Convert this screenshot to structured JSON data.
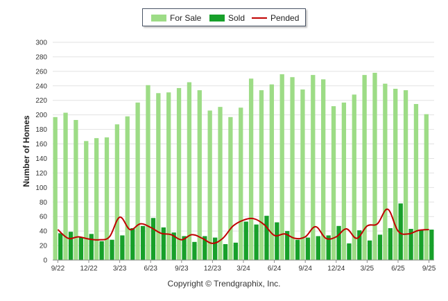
{
  "legend": {
    "for_sale": "For Sale",
    "sold": "Sold",
    "pended": "Pended"
  },
  "colors": {
    "for_sale": "#9ddc86",
    "sold": "#17a02a",
    "pended": "#c00000",
    "grid": "#e2e2e2",
    "axis": "#8a8a8a"
  },
  "copyright": "Copyright © Trendgraphix, Inc.",
  "chart_data": {
    "type": "bar",
    "title": "",
    "xlabel": "",
    "ylabel": "Number of Homes",
    "ylim": [
      0,
      300
    ],
    "yticks": [
      0,
      20,
      40,
      60,
      80,
      100,
      120,
      140,
      160,
      180,
      200,
      220,
      240,
      260,
      280,
      300
    ],
    "grid": true,
    "legend_position": "top-center",
    "categories": [
      "9/22",
      "10/22",
      "11/22",
      "12/22",
      "1/23",
      "2/23",
      "3/23",
      "4/23",
      "5/23",
      "6/23",
      "7/23",
      "8/23",
      "9/23",
      "10/23",
      "11/23",
      "12/23",
      "1/24",
      "2/24",
      "3/24",
      "4/24",
      "5/24",
      "6/24",
      "7/24",
      "8/24",
      "9/24",
      "10/24",
      "11/24",
      "12/24",
      "1/25",
      "2/25",
      "3/25",
      "4/25",
      "5/25",
      "6/25",
      "7/25",
      "8/25",
      "9/25"
    ],
    "x_tick_labels": [
      "9/22",
      "12/22",
      "3/23",
      "6/23",
      "9/23",
      "12/23",
      "3/24",
      "6/24",
      "9/24",
      "12/24",
      "3/25",
      "6/25",
      "9/25"
    ],
    "series": [
      {
        "name": "For Sale",
        "type": "bar",
        "values": [
          197,
          203,
          193,
          164,
          168,
          169,
          187,
          198,
          217,
          241,
          230,
          231,
          237,
          245,
          234,
          206,
          211,
          197,
          210,
          250,
          234,
          242,
          256,
          252,
          235,
          255,
          249,
          212,
          217,
          228,
          255,
          258,
          243,
          236,
          234,
          215,
          201
        ]
      },
      {
        "name": "Sold",
        "type": "bar",
        "values": [
          37,
          39,
          31,
          36,
          26,
          28,
          34,
          44,
          47,
          58,
          45,
          38,
          33,
          25,
          33,
          31,
          22,
          24,
          53,
          49,
          61,
          52,
          40,
          28,
          31,
          33,
          34,
          47,
          23,
          41,
          27,
          35,
          44,
          78,
          43,
          42,
          42
        ]
      },
      {
        "name": "Pended",
        "type": "line",
        "values": [
          42,
          30,
          32,
          29,
          28,
          32,
          59,
          42,
          50,
          45,
          37,
          35,
          28,
          35,
          30,
          23,
          30,
          47,
          55,
          57,
          49,
          34,
          36,
          30,
          32,
          46,
          30,
          32,
          43,
          30,
          47,
          50,
          70,
          40,
          36,
          41,
          42
        ]
      }
    ]
  }
}
